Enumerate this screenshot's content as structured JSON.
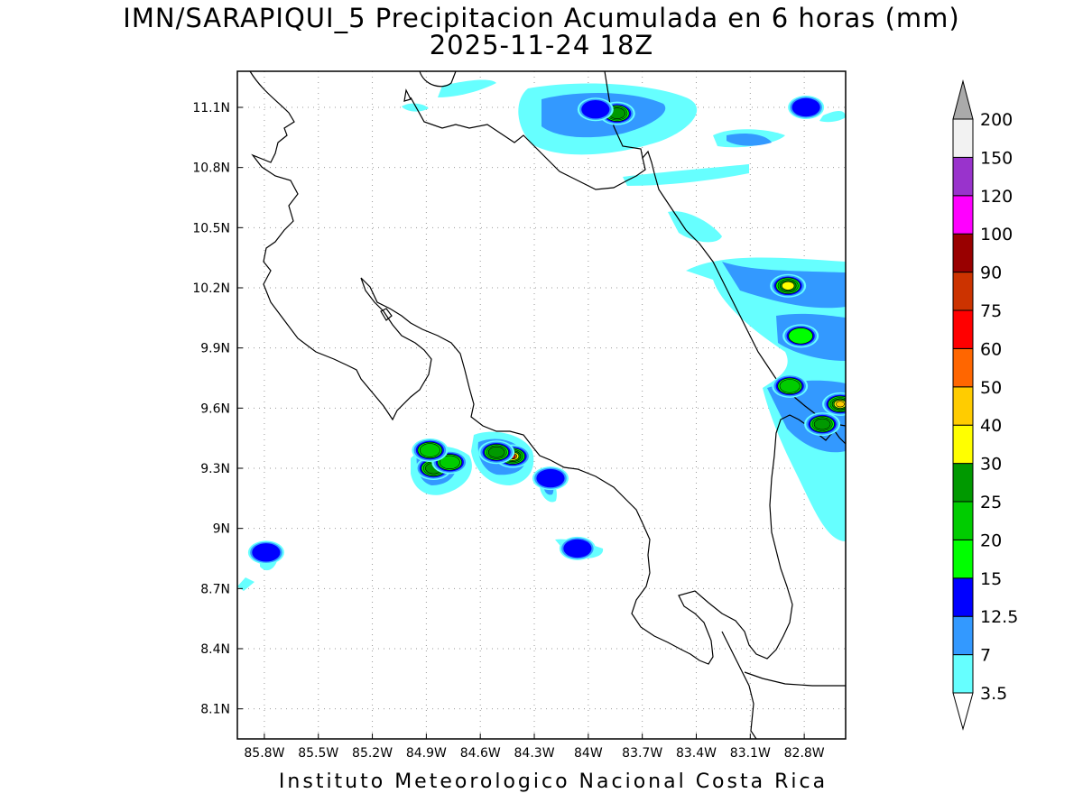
{
  "title": "IMN/SARAPIQUI_5 Precipitacion Acumulada en 6 horas (mm)",
  "subtitle": "2025-11-24 18Z",
  "footer": "Instituto Meteorologico Nacional Costa Rica",
  "map": {
    "lon_range": [
      -85.95,
      -82.57
    ],
    "lat_range": [
      7.95,
      11.28
    ],
    "lon_ticks": [
      {
        "value": -85.8,
        "label": "85.8W"
      },
      {
        "value": -85.5,
        "label": "85.5W"
      },
      {
        "value": -85.2,
        "label": "85.2W"
      },
      {
        "value": -84.9,
        "label": "84.9W"
      },
      {
        "value": -84.6,
        "label": "84.6W"
      },
      {
        "value": -84.3,
        "label": "84.3W"
      },
      {
        "value": -84.0,
        "label": "84W"
      },
      {
        "value": -83.7,
        "label": "83.7W"
      },
      {
        "value": -83.4,
        "label": "83.4W"
      },
      {
        "value": -83.1,
        "label": "83.1W"
      },
      {
        "value": -82.8,
        "label": "82.8W"
      }
    ],
    "lat_ticks": [
      {
        "value": 11.1,
        "label": "11.1N"
      },
      {
        "value": 10.8,
        "label": "10.8N"
      },
      {
        "value": 10.5,
        "label": "10.5N"
      },
      {
        "value": 10.2,
        "label": "10.2N"
      },
      {
        "value": 9.9,
        "label": "9.9N"
      },
      {
        "value": 9.6,
        "label": "9.6N"
      },
      {
        "value": 9.3,
        "label": "9.3N"
      },
      {
        "value": 9.0,
        "label": "9N"
      },
      {
        "value": 8.7,
        "label": "8.7N"
      },
      {
        "value": 8.4,
        "label": "8.4N"
      },
      {
        "value": 8.1,
        "label": "8.1N"
      }
    ],
    "grid": true
  },
  "colorbar": {
    "levels": [
      {
        "label": "3.5",
        "color": "#66ffff"
      },
      {
        "label": "7",
        "color": "#3399ff"
      },
      {
        "label": "12.5",
        "color": "#0000ff"
      },
      {
        "label": "15",
        "color": "#00ff00"
      },
      {
        "label": "20",
        "color": "#00cc00"
      },
      {
        "label": "25",
        "color": "#009900"
      },
      {
        "label": "30",
        "color": "#ffff00"
      },
      {
        "label": "40",
        "color": "#ffcc00"
      },
      {
        "label": "50",
        "color": "#ff6600"
      },
      {
        "label": "60",
        "color": "#ff0000"
      },
      {
        "label": "75",
        "color": "#cc3300"
      },
      {
        "label": "90",
        "color": "#990000"
      },
      {
        "label": "100",
        "color": "#ff00ff"
      },
      {
        "label": "120",
        "color": "#9933cc"
      },
      {
        "label": "150",
        "color": "#f2f2f2"
      },
      {
        "label": "200",
        "color": "#aaaaaa"
      }
    ]
  },
  "precip_cells": [
    {
      "lon": -84.86,
      "lat": 9.3,
      "level": 5
    },
    {
      "lon": -84.77,
      "lat": 9.33,
      "level": 4
    },
    {
      "lon": -84.88,
      "lat": 9.39,
      "level": 4
    },
    {
      "lon": -84.42,
      "lat": 9.36,
      "level": 9
    },
    {
      "lon": -84.51,
      "lat": 9.38,
      "level": 5
    },
    {
      "lon": -84.21,
      "lat": 9.25,
      "level": 2
    },
    {
      "lon": -84.06,
      "lat": 8.9,
      "level": 2
    },
    {
      "lon": -85.79,
      "lat": 8.88,
      "level": 2
    },
    {
      "lon": -83.84,
      "lat": 11.07,
      "level": 5
    },
    {
      "lon": -83.96,
      "lat": 11.09,
      "level": 2
    },
    {
      "lon": -82.79,
      "lat": 11.1,
      "level": 2
    },
    {
      "lon": -82.89,
      "lat": 10.21,
      "level": 6
    },
    {
      "lon": -82.82,
      "lat": 9.96,
      "level": 3
    },
    {
      "lon": -82.88,
      "lat": 9.71,
      "level": 4
    },
    {
      "lon": -82.6,
      "lat": 9.62,
      "level": 7
    },
    {
      "lon": -82.7,
      "lat": 9.52,
      "level": 5
    }
  ]
}
